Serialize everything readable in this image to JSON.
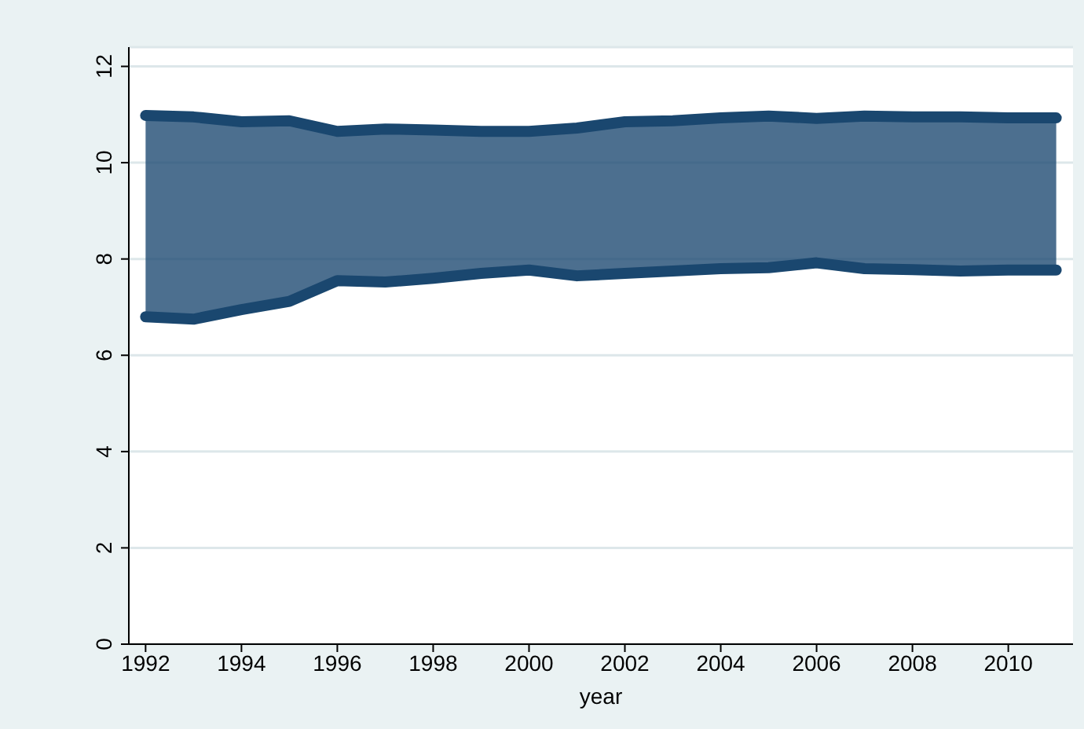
{
  "chart_data": {
    "type": "line",
    "xlabel": "year",
    "x": [
      1992,
      1993,
      1994,
      1995,
      1996,
      1997,
      1998,
      1999,
      2000,
      2001,
      2002,
      2003,
      2004,
      2005,
      2006,
      2007,
      2008,
      2009,
      2010,
      2011
    ],
    "series": [
      {
        "color": "#1a476f",
        "values": [
          6.8,
          6.75,
          6.95,
          7.12,
          7.55,
          7.52,
          7.6,
          7.7,
          7.77,
          7.65,
          7.7,
          7.75,
          7.8,
          7.82,
          7.92,
          7.8,
          7.78,
          7.75,
          7.77,
          7.77
        ]
      },
      {
        "color": "#1a476f",
        "values": [
          10.98,
          10.95,
          10.85,
          10.87,
          10.65,
          10.7,
          10.68,
          10.65,
          10.65,
          10.72,
          10.85,
          10.87,
          10.93,
          10.97,
          10.92,
          10.97,
          10.95,
          10.95,
          10.93,
          10.93
        ],
        "lower": [
          6.8,
          6.75,
          6.95,
          7.12,
          7.55,
          7.52,
          7.6,
          7.7,
          7.77,
          7.65,
          7.7,
          7.75,
          7.8,
          7.82,
          7.92,
          7.8,
          7.78,
          7.75,
          7.77,
          7.77
        ],
        "upper": [
          10.98,
          10.95,
          10.85,
          10.87,
          10.65,
          10.7,
          10.68,
          10.65,
          10.65,
          10.72,
          10.85,
          10.87,
          10.93,
          10.97,
          10.92,
          10.97,
          10.95,
          10.95,
          10.93,
          10.93
        ]
      }
    ],
    "xlim": [
      1991.65,
      2011.35
    ],
    "xticks": [
      1992,
      1994,
      1996,
      1998,
      2000,
      2002,
      2004,
      2006,
      2008,
      2010
    ],
    "ylim": [
      0,
      12.4
    ],
    "yticks": [
      0,
      2,
      4,
      6,
      8,
      10,
      12
    ],
    "grid": "y",
    "legend": false
  }
}
